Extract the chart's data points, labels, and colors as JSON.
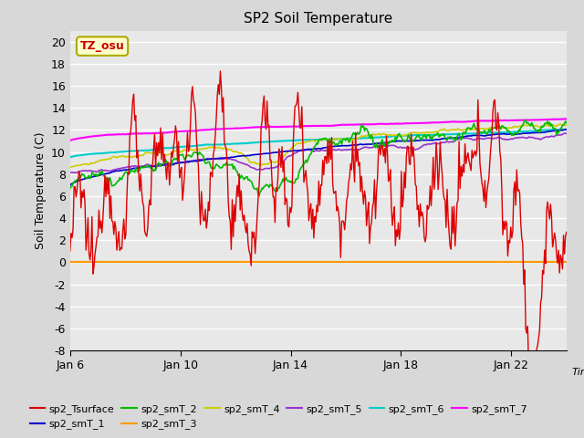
{
  "title": "SP2 Soil Temperature",
  "xlabel": "Time",
  "ylabel": "Soil Temperature (C)",
  "ylim": [
    -8,
    21
  ],
  "yticks": [
    -8,
    -6,
    -4,
    -2,
    0,
    2,
    4,
    6,
    8,
    10,
    12,
    14,
    16,
    18,
    20
  ],
  "xlim_start": 6,
  "xlim_end": 24,
  "xtick_positions": [
    6,
    10,
    14,
    18,
    22
  ],
  "xtick_labels": [
    "Jan 6",
    "Jan 10",
    "Jan 14",
    "Jan 18",
    "Jan 22"
  ],
  "fig_bg_color": "#d8d8d8",
  "plot_bg_color": "#e8e8e8",
  "grid_color": "white",
  "annotation_text": "TZ_osu",
  "annotation_bg": "#ffffcc",
  "annotation_border": "#aaaa00",
  "series": {
    "sp2_Tsurface": {
      "color": "#dd0000",
      "lw": 1.0
    },
    "sp2_smT_1": {
      "color": "#0000cc",
      "lw": 1.2
    },
    "sp2_smT_2": {
      "color": "#00bb00",
      "lw": 1.2
    },
    "sp2_smT_3": {
      "color": "#ff9900",
      "lw": 1.5
    },
    "sp2_smT_4": {
      "color": "#cccc00",
      "lw": 1.2
    },
    "sp2_smT_5": {
      "color": "#9933cc",
      "lw": 1.2
    },
    "sp2_smT_6": {
      "color": "#00cccc",
      "lw": 1.5
    },
    "sp2_smT_7": {
      "color": "#ff00ff",
      "lw": 1.5
    }
  }
}
